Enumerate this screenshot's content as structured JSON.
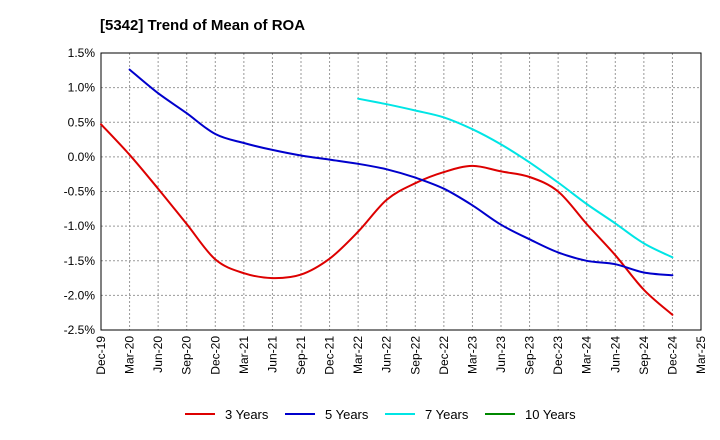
{
  "chart_data": {
    "type": "line",
    "title": "[5342]  Trend of Mean of ROA",
    "xlabel": "",
    "ylabel": "",
    "ylim": [
      -2.5,
      1.5
    ],
    "yticks": [
      1.5,
      1.0,
      0.5,
      0.0,
      -0.5,
      -1.0,
      -1.5,
      -2.0,
      -2.5
    ],
    "ytick_labels": [
      "1.5%",
      "1.0%",
      "0.5%",
      "0.0%",
      "-0.5%",
      "-1.0%",
      "-1.5%",
      "-2.0%",
      "-2.5%"
    ],
    "categories": [
      "Dec-19",
      "Mar-20",
      "Jun-20",
      "Sep-20",
      "Dec-20",
      "Mar-21",
      "Jun-21",
      "Sep-21",
      "Dec-21",
      "Mar-22",
      "Jun-22",
      "Sep-22",
      "Dec-22",
      "Mar-23",
      "Jun-23",
      "Sep-23",
      "Dec-23",
      "Mar-24",
      "Jun-24",
      "Sep-24",
      "Dec-24",
      "Mar-25"
    ],
    "grid": true,
    "legend_position": "bottom",
    "series": [
      {
        "name": "3 Years",
        "color": "#dd0000",
        "values": [
          0.47,
          0.03,
          -0.46,
          -0.97,
          -1.48,
          -1.68,
          -1.75,
          -1.7,
          -1.47,
          -1.08,
          -0.62,
          -0.38,
          -0.22,
          -0.13,
          -0.21,
          -0.29,
          -0.5,
          -0.97,
          -1.42,
          -1.92,
          -2.28,
          null
        ]
      },
      {
        "name": "5 Years",
        "color": "#0000cc",
        "values": [
          null,
          1.26,
          0.92,
          0.63,
          0.33,
          0.2,
          0.1,
          0.02,
          -0.04,
          -0.1,
          -0.18,
          -0.3,
          -0.46,
          -0.7,
          -0.98,
          -1.19,
          -1.38,
          -1.5,
          -1.55,
          -1.67,
          -1.71,
          null
        ]
      },
      {
        "name": "7 Years",
        "color": "#00e5e5",
        "values": [
          null,
          null,
          null,
          null,
          null,
          null,
          null,
          null,
          null,
          0.84,
          0.76,
          0.67,
          0.57,
          0.4,
          0.18,
          -0.08,
          -0.37,
          -0.68,
          -0.96,
          -1.25,
          -1.45,
          null
        ]
      },
      {
        "name": "10 Years",
        "color": "#008800",
        "values": [
          null,
          null,
          null,
          null,
          null,
          null,
          null,
          null,
          null,
          null,
          null,
          null,
          null,
          null,
          null,
          null,
          null,
          null,
          null,
          null,
          null,
          null
        ]
      }
    ]
  }
}
